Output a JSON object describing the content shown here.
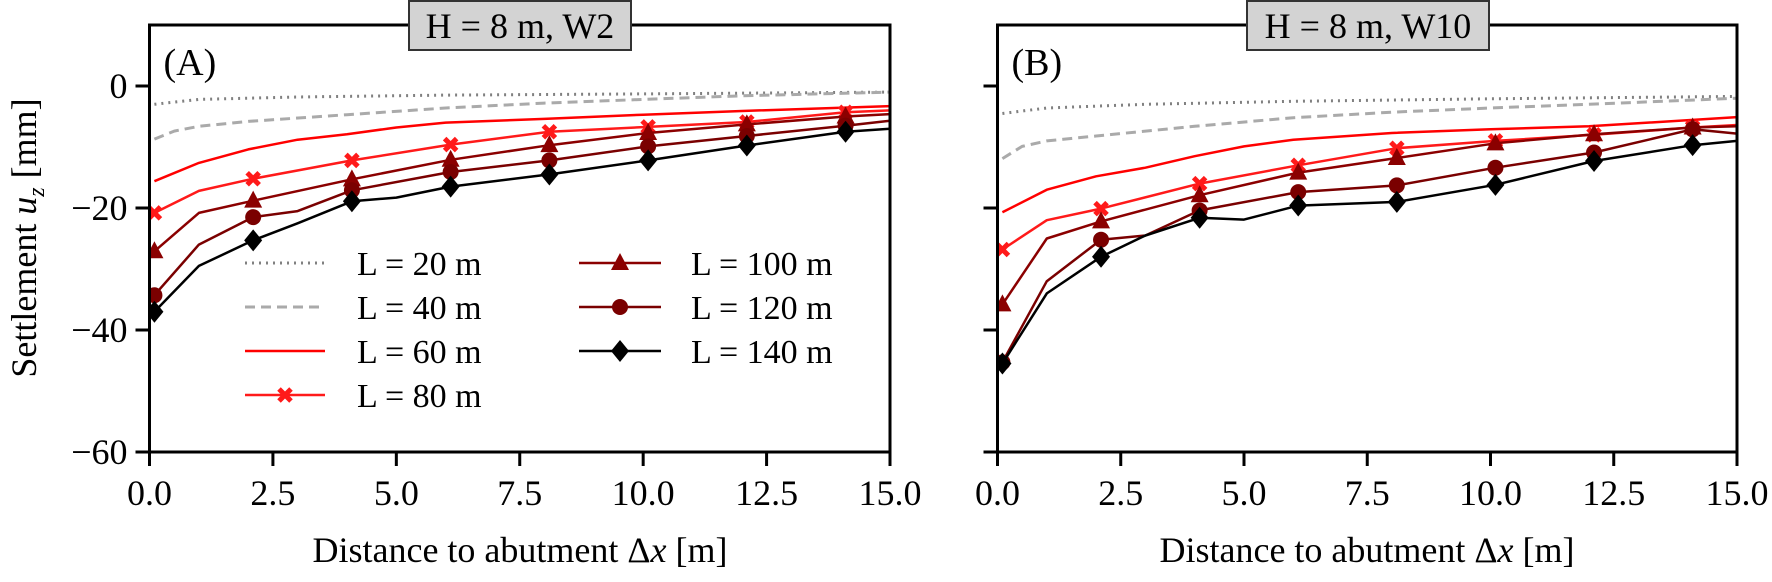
{
  "chart_data": {
    "type": "line",
    "ylabel_main": "Settlement ",
    "ylabel_var": "u",
    "ylabel_sub": "z",
    "ylabel_unit": " [mm]",
    "xlabel_main": "Distance to abutment Δ",
    "xlabel_var": "x",
    "xlabel_unit": " [m]",
    "xlim": [
      0,
      15
    ],
    "ylim": [
      -60,
      10
    ],
    "xticks": [
      0,
      2.5,
      5,
      7.5,
      10,
      12.5,
      15
    ],
    "xtick_labels": [
      "0.0",
      "2.5",
      "5.0",
      "7.5",
      "10.0",
      "12.5",
      "15.0"
    ],
    "yticks": [
      -60,
      -40,
      -20,
      0
    ],
    "ytick_labels": [
      "−60",
      "−40",
      "−20",
      "0"
    ],
    "grid": false,
    "legend": {
      "placement": "lower-center of panel A",
      "entries": [
        "L = 20 m",
        "L = 40 m",
        "L = 60 m",
        "L = 80 m",
        "L = 100 m",
        "L = 120 m",
        "L = 140 m"
      ]
    },
    "series_style": [
      {
        "name": "L = 20 m",
        "color": "#808080",
        "dash": "dotted",
        "marker": "none"
      },
      {
        "name": "L = 40 m",
        "color": "#aaaaaa",
        "dash": "dashed",
        "marker": "none"
      },
      {
        "name": "L = 60 m",
        "color": "#ff0000",
        "dash": "solid",
        "marker": "none"
      },
      {
        "name": "L = 80 m",
        "color": "#ff1a1a",
        "dash": "solid",
        "marker": "x"
      },
      {
        "name": "L = 100 m",
        "color": "#8b0000",
        "dash": "solid",
        "marker": "triangle"
      },
      {
        "name": "L = 120 m",
        "color": "#7a0000",
        "dash": "solid",
        "marker": "circle"
      },
      {
        "name": "L = 140 m",
        "color": "#000000",
        "dash": "solid",
        "marker": "diamond"
      }
    ],
    "marker_x": [
      0.1,
      2.1,
      4.1,
      6.1,
      8.1,
      10.1,
      12.1,
      14.1
    ],
    "panels": [
      {
        "label": "(A)",
        "title": "H = 8 m, W2",
        "series": [
          {
            "name": "L = 20 m",
            "x": [
              0.1,
              1,
              3,
              6,
              10,
              15
            ],
            "y": [
              -3,
              -2.2,
              -1.8,
              -1.5,
              -1.3,
              -1
            ]
          },
          {
            "name": "L = 40 m",
            "x": [
              0.1,
              0.5,
              1,
              2,
              4,
              6,
              8,
              10,
              12,
              15
            ],
            "y": [
              -8.7,
              -7.4,
              -6.6,
              -5.8,
              -4.7,
              -3.6,
              -2.8,
              -2.2,
              -1.6,
              -1
            ]
          },
          {
            "name": "L = 60 m",
            "x": [
              0.1,
              1,
              2,
              3,
              4,
              5,
              6,
              8,
              10,
              12,
              15
            ],
            "y": [
              -15.6,
              -12.6,
              -10.4,
              -8.8,
              -7.9,
              -6.8,
              -6,
              -5.4,
              -4.7,
              -4.1,
              -3.3
            ]
          },
          {
            "name": "L = 80 m",
            "x": [
              0.1,
              1,
              2.1,
              4.1,
              6.1,
              8.1,
              10.1,
              12.1,
              14.1,
              15
            ],
            "y": [
              -20.8,
              -17.2,
              -15.2,
              -12.2,
              -9.6,
              -7.5,
              -6.7,
              -5.9,
              -4.3,
              -4
            ]
          },
          {
            "name": "L = 100 m",
            "x": [
              0.1,
              1,
              2.1,
              4.1,
              6.1,
              8.1,
              10.1,
              12.1,
              14.1,
              15
            ],
            "y": [
              -27.1,
              -20.8,
              -18.8,
              -15.3,
              -12.1,
              -9.7,
              -7.7,
              -6.3,
              -5,
              -4.6
            ]
          },
          {
            "name": "L = 120 m",
            "x": [
              0.1,
              1,
              2.1,
              3,
              4.1,
              6.1,
              8.1,
              10.1,
              12.1,
              14.1,
              15
            ],
            "y": [
              -34.3,
              -26,
              -21.5,
              -20.5,
              -17.1,
              -14.1,
              -12.2,
              -9.9,
              -8.2,
              -6.5,
              -5.7
            ]
          },
          {
            "name": "L = 140 m",
            "x": [
              0.1,
              1,
              2.1,
              3,
              4.1,
              5,
              6.1,
              8.1,
              10.1,
              12.1,
              14.1,
              15
            ],
            "y": [
              -37,
              -29.5,
              -25.3,
              -22.5,
              -18.9,
              -18.3,
              -16.5,
              -14.5,
              -12.2,
              -9.75,
              -7.5,
              -7
            ]
          }
        ]
      },
      {
        "label": "(B)",
        "title": "H = 8 m, W10",
        "series": [
          {
            "name": "L = 20 m",
            "x": [
              0.1,
              1,
              3,
              6,
              10,
              15
            ],
            "y": [
              -4.5,
              -3.6,
              -3,
              -2.5,
              -2.1,
              -1.7
            ]
          },
          {
            "name": "L = 40 m",
            "x": [
              0.1,
              0.5,
              1,
              2,
              4,
              6,
              8,
              10,
              12,
              15
            ],
            "y": [
              -11.9,
              -9.9,
              -9,
              -8.2,
              -6.6,
              -5.2,
              -4.3,
              -3.6,
              -3,
              -2
            ]
          },
          {
            "name": "L = 60 m",
            "x": [
              0.1,
              1,
              2,
              3,
              4,
              5,
              6,
              8,
              10,
              12,
              15
            ],
            "y": [
              -20.7,
              -17,
              -14.8,
              -13.4,
              -11.5,
              -9.9,
              -8.8,
              -7.7,
              -7.1,
              -6.6,
              -5.1
            ]
          },
          {
            "name": "L = 80 m",
            "x": [
              0.1,
              1,
              2.1,
              4.1,
              6.1,
              8.1,
              10.1,
              12.1,
              14.1,
              15
            ],
            "y": [
              -26.8,
              -22,
              -20.1,
              -16,
              -13,
              -10.2,
              -9,
              -8,
              -6.8,
              -6.4
            ]
          },
          {
            "name": "L = 100 m",
            "x": [
              0.1,
              1,
              2.1,
              4.1,
              6.1,
              8.1,
              10.1,
              12.1,
              14.1,
              15
            ],
            "y": [
              -35.8,
              -25,
              -22.2,
              -17.9,
              -14.2,
              -11.8,
              -9.4,
              -7.9,
              -6.8,
              -6.6
            ]
          },
          {
            "name": "L = 120 m",
            "x": [
              0.1,
              1,
              2.1,
              3,
              4.1,
              6.1,
              8.1,
              10.1,
              12.1,
              14.1,
              15
            ],
            "y": [
              -45.3,
              -32,
              -25.2,
              -24.5,
              -20.4,
              -17.4,
              -16.3,
              -13.4,
              -10.9,
              -7.1,
              -7.8
            ]
          },
          {
            "name": "L = 140 m",
            "x": [
              0.1,
              1,
              2.1,
              3,
              4.1,
              5,
              6.1,
              8.1,
              10.1,
              12.1,
              14.1,
              15
            ],
            "y": [
              -45.5,
              -34,
              -28,
              -24.5,
              -21.6,
              -21.9,
              -19.6,
              -19,
              -16.2,
              -12.3,
              -9.7,
              -9
            ]
          }
        ]
      }
    ]
  }
}
